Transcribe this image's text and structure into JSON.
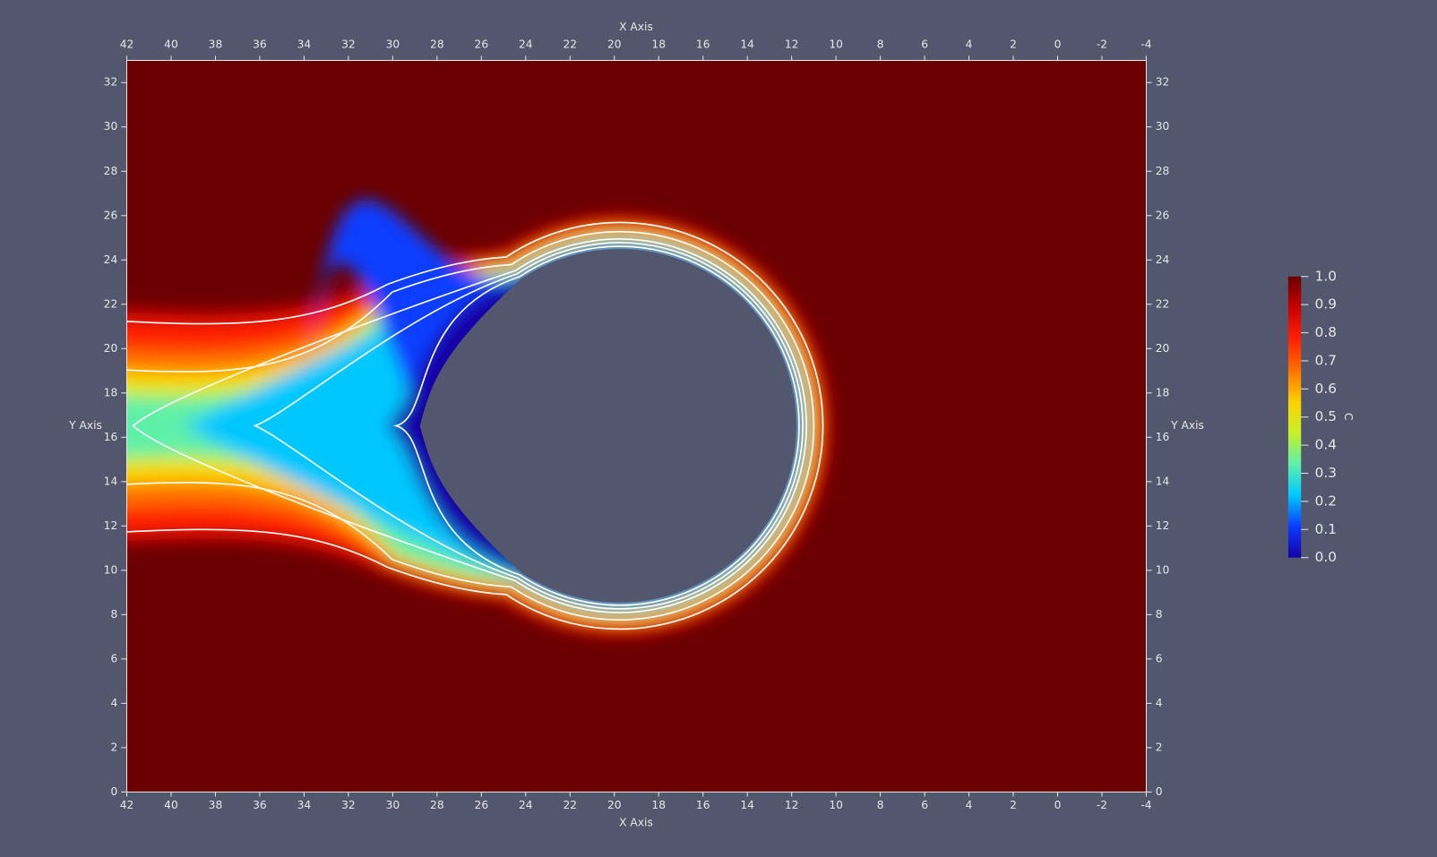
{
  "chart_data": {
    "type": "contour",
    "xlabel": "X Axis",
    "ylabel": "Y Axis",
    "xlim": [
      42,
      -4
    ],
    "ylim": [
      0,
      33
    ],
    "xticks": [
      42,
      40,
      38,
      36,
      34,
      32,
      30,
      28,
      26,
      24,
      22,
      20,
      18,
      16,
      14,
      12,
      10,
      8,
      6,
      4,
      2,
      0,
      -2,
      -4
    ],
    "yticks": [
      0,
      2,
      4,
      6,
      8,
      10,
      12,
      14,
      16,
      18,
      20,
      22,
      24,
      26,
      28,
      30,
      32
    ],
    "colorbar": {
      "title": "C",
      "lim": [
        0,
        1
      ],
      "ticks": [
        {
          "value": 0,
          "label": "0.0"
        },
        {
          "value": 0.1,
          "label": "0.1"
        },
        {
          "value": 0.2,
          "label": "0.2"
        },
        {
          "value": 0.3,
          "label": "0.3"
        },
        {
          "value": 0.4,
          "label": "0.4"
        },
        {
          "value": 0.5,
          "label": "0.5"
        },
        {
          "value": 0.6,
          "label": "0.6"
        },
        {
          "value": 0.7,
          "label": "0.7"
        },
        {
          "value": 0.8,
          "label": "0.8"
        },
        {
          "value": 0.9,
          "label": "0.9"
        },
        {
          "value": 1,
          "label": "1.0"
        }
      ],
      "colormap": [
        "#1400a8",
        "#0a3cff",
        "#00c8ff",
        "#5ff0a8",
        "#c8f028",
        "#ffd000",
        "#ff7000",
        "#ff2000",
        "#c80000",
        "#6a0000"
      ]
    }
  }
}
